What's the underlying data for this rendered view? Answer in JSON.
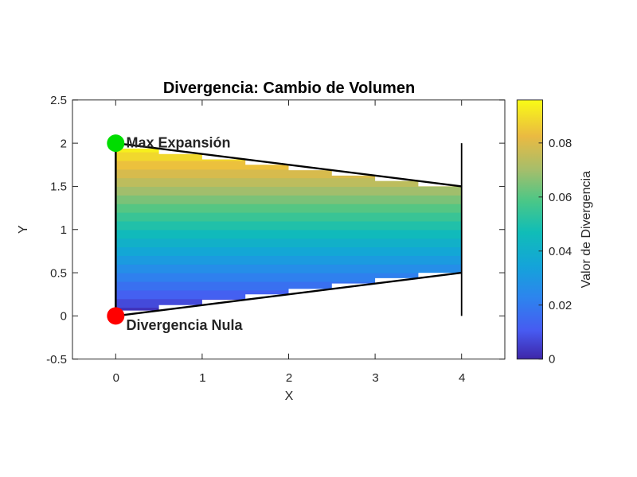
{
  "chart_data": {
    "type": "heatmap",
    "title": "Divergencia: Cambio de Volumen",
    "xlabel": "X",
    "ylabel": "Y",
    "xlim": [
      -0.5,
      4.5
    ],
    "ylim": [
      -0.5,
      2.5
    ],
    "x_ticks": [
      0,
      1,
      2,
      3,
      4
    ],
    "y_ticks": [
      -0.5,
      0,
      0.5,
      1,
      1.5,
      2,
      2.5
    ],
    "x_tick_labels": [
      "0",
      "1",
      "2",
      "3",
      "4"
    ],
    "y_tick_labels": [
      "-0.5",
      "0",
      "0.5",
      "1",
      "1.5",
      "2",
      "2.5"
    ],
    "grid": false,
    "axis_color": "#262626",
    "outline_color": "#000000",
    "region": {
      "type": "trapezoid",
      "corners": [
        [
          0,
          0
        ],
        [
          4,
          0.5
        ],
        [
          4,
          1.5
        ],
        [
          0,
          2
        ]
      ],
      "contour_step_x": 0.5
    },
    "field": {
      "description": "divergence value increases linearly with y: 0 at y=0 up to ~0.096 at y=2",
      "formula": "div(y) = 0.048 * y",
      "min": 0,
      "max": 0.0959,
      "bands": 20
    },
    "band_colors": [
      "#4032B9",
      "#444ADA",
      "#4460F1",
      "#3970F0",
      "#2F80EE",
      "#258EE8",
      "#1B9BDF",
      "#13A7D5",
      "#12B0C8",
      "#10BABB",
      "#21C0A9",
      "#39C495",
      "#55C683",
      "#7BC278",
      "#A1BE6C",
      "#BDBD5D",
      "#D7BB4D",
      "#ECC13D",
      "#F1D82D",
      "#F6EF1D"
    ],
    "colormap": "parula",
    "colormap_stops": [
      {
        "t": 0.0,
        "c": "#3E26A8"
      },
      {
        "t": 0.11,
        "c": "#475BF1"
      },
      {
        "t": 0.24,
        "c": "#2C85EE"
      },
      {
        "t": 0.36,
        "c": "#14A4D9"
      },
      {
        "t": 0.49,
        "c": "#10BDB7"
      },
      {
        "t": 0.61,
        "c": "#4AC787"
      },
      {
        "t": 0.73,
        "c": "#A5BE6B"
      },
      {
        "t": 0.86,
        "c": "#EABA42"
      },
      {
        "t": 1.0,
        "c": "#F9FB15"
      }
    ],
    "colorbar": {
      "label": "Valor de Divergencia",
      "ticks": [
        0,
        0.02,
        0.04,
        0.06,
        0.08
      ],
      "tick_labels": [
        "0",
        "0.02",
        "0.04",
        "0.06",
        "0.08"
      ],
      "vmin": 0,
      "vmax": 0.0959,
      "position": "right"
    },
    "annotations": [
      {
        "text": "Max Expansión",
        "x": 0,
        "y": 2,
        "marker": "circle",
        "marker_color": "#00DD00",
        "text_color": "#00DD00"
      },
      {
        "text": "Divergencia Nula",
        "x": 0,
        "y": 0,
        "marker": "circle",
        "marker_color": "#FF0000",
        "text_color": "#FF0000"
      }
    ]
  }
}
